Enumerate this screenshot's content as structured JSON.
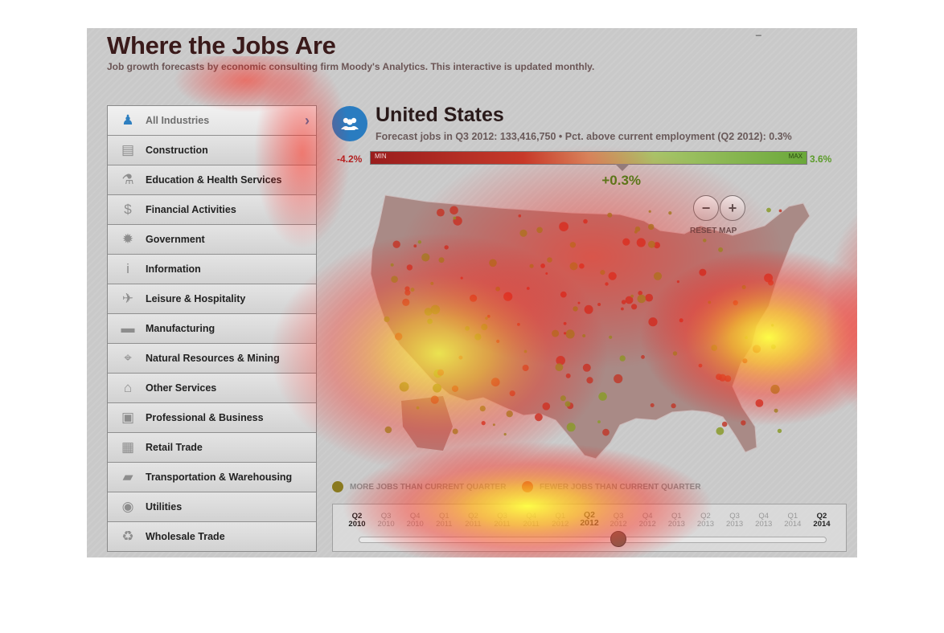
{
  "header": {
    "title": "Where the Jobs Are",
    "subtitle": "Job growth forecasts by economic consulting firm Moody's Analytics. This interactive is updated monthly.",
    "top_mark": "_"
  },
  "sidebar": {
    "items": [
      {
        "label": "All Industries",
        "icon": "people-icon",
        "active": true
      },
      {
        "label": "Construction",
        "icon": "barrier-icon"
      },
      {
        "label": "Education & Health Services",
        "icon": "flask-icon"
      },
      {
        "label": "Financial Activities",
        "icon": "dollar-icon"
      },
      {
        "label": "Government",
        "icon": "seal-icon"
      },
      {
        "label": "Information",
        "icon": "info-icon"
      },
      {
        "label": "Leisure & Hospitality",
        "icon": "airplane-icon"
      },
      {
        "label": "Manufacturing",
        "icon": "car-icon"
      },
      {
        "label": "Natural Resources & Mining",
        "icon": "crosshair-icon"
      },
      {
        "label": "Other Services",
        "icon": "house-icon"
      },
      {
        "label": "Professional & Business",
        "icon": "briefcase-icon"
      },
      {
        "label": "Retail Trade",
        "icon": "cart-icon"
      },
      {
        "label": "Transportation & Warehousing",
        "icon": "truck-icon"
      },
      {
        "label": "Utilities",
        "icon": "lightbulb-icon"
      },
      {
        "label": "Wholesale Trade",
        "icon": "recycle-icon"
      }
    ]
  },
  "location": {
    "name": "United States",
    "detail": "Forecast jobs in Q3 2012: 133,416,750 • Pct. above current employment (Q2 2012): 0.3%"
  },
  "range": {
    "min_label": "-4.2%",
    "max_label": "3.6%",
    "bar_min": "MIN",
    "bar_max": "MAX",
    "min_value": -4.2,
    "max_value": 3.6,
    "current_value": 0.3,
    "current_label": "+0.3%"
  },
  "map": {
    "zoom_out": "−",
    "zoom_in": "+",
    "reset_label": "RESET MAP"
  },
  "legend": {
    "more_label": "MORE JOBS THAN CURRENT QUARTER",
    "fewer_label": "FEWER JOBS THAN CURRENT QUARTER",
    "more_color": "#8a7a20",
    "fewer_color": "#c0392b"
  },
  "timeline": {
    "ticks": [
      {
        "q": "Q2",
        "y": "2010"
      },
      {
        "q": "Q3",
        "y": "2010"
      },
      {
        "q": "Q4",
        "y": "2010"
      },
      {
        "q": "Q1",
        "y": "2011"
      },
      {
        "q": "Q2",
        "y": "2011"
      },
      {
        "q": "Q3",
        "y": "2011"
      },
      {
        "q": "Q4",
        "y": "2011"
      },
      {
        "q": "Q1",
        "y": "2012"
      },
      {
        "q": "Q2",
        "y": "2012"
      },
      {
        "q": "Q3",
        "y": "2012"
      },
      {
        "q": "Q4",
        "y": "2012"
      },
      {
        "q": "Q1",
        "y": "2013"
      },
      {
        "q": "Q2",
        "y": "2013"
      },
      {
        "q": "Q3",
        "y": "2013"
      },
      {
        "q": "Q4",
        "y": "2013"
      },
      {
        "q": "Q1",
        "y": "2014"
      },
      {
        "q": "Q2",
        "y": "2014"
      }
    ],
    "selected_index": 8,
    "slider_index": 9
  },
  "colors": {
    "accent": "#2a7cc0",
    "negative": "#b22222",
    "positive": "#5c9c2a"
  }
}
